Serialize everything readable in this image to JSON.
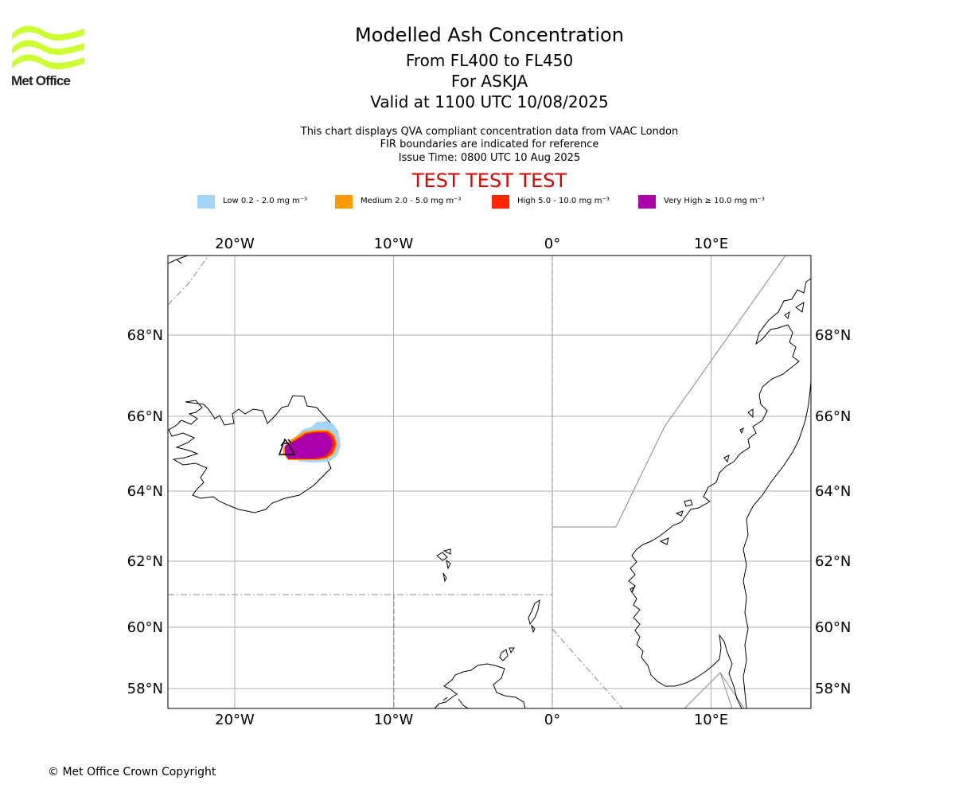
{
  "header": {
    "title": "Modelled Ash Concentration",
    "subtitle_levels": "From FL400 to FL450",
    "subtitle_volcano": "For ASKJA",
    "subtitle_valid": "Valid at 1100 UTC 10/08/2025",
    "note_qva": "This chart displays QVA compliant concentration data from VAAC London",
    "note_fir": "FIR boundaries are indicated for reference",
    "note_issue": "Issue Time: 0800 UTC 10 Aug 2025",
    "test_banner": "TEST TEST TEST",
    "test_color": "#dd0000"
  },
  "logo": {
    "text": "Met Office",
    "color": "#ccff33"
  },
  "legend": [
    {
      "label": "Low 0.2 - 2.0 mg m⁻³",
      "color": "#a3d4fa"
    },
    {
      "label": "Medium 2.0 - 5.0 mg m⁻³",
      "color": "#ff9a00"
    },
    {
      "label": "High 5.0 - 10.0 mg m⁻³",
      "color": "#ff2600"
    },
    {
      "label": "Very High ≥ 10.0 mg m⁻³",
      "color": "#ab00ab"
    }
  ],
  "map": {
    "lon_ticks": [
      {
        "lon": -20,
        "label": "20°W"
      },
      {
        "lon": -10,
        "label": "10°W"
      },
      {
        "lon": 0,
        "label": "0°"
      },
      {
        "lon": 10,
        "label": "10°E"
      }
    ],
    "lat_ticks": [
      {
        "lat": 68,
        "label": "68°N"
      },
      {
        "lat": 66,
        "label": "66°N"
      },
      {
        "lat": 64,
        "label": "64°N"
      },
      {
        "lat": 62,
        "label": "62°N"
      },
      {
        "lat": 60,
        "label": "60°N"
      },
      {
        "lat": 58,
        "label": "58°N"
      }
    ],
    "volcano": {
      "name": "ASKJA",
      "lat": 65.03,
      "lon": -16.75
    }
  },
  "footer": {
    "copyright": "© Met Office Crown Copyright"
  }
}
